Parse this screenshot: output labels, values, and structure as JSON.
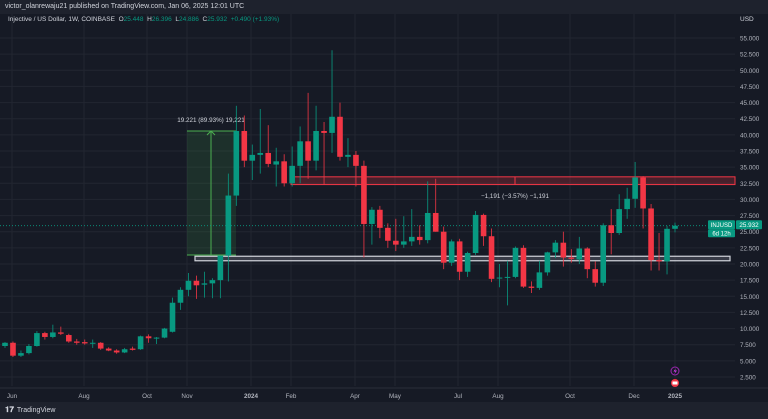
{
  "header": {
    "published": "victor_olanrewaju21 published on TradingView.com, Jan 06, 2025 12:01 UTC"
  },
  "legend": {
    "symbol": "Injective / US Dollar, 1W, COINBASE",
    "o_label": "O",
    "o": "25.448",
    "h_label": "H",
    "h": "26.396",
    "l_label": "L",
    "l": "24.886",
    "c_label": "C",
    "c": "25.932",
    "change": "+0.490 (+1.93%)"
  },
  "currency": "USD",
  "price_tag": {
    "ticker": "INJUSD",
    "price": "25.932",
    "countdown": "6d 12h"
  },
  "annotations": {
    "measure_up": "19.221 (89.93%) 19,221",
    "measure_down": "−1,191 (−3.57%) −1,191"
  },
  "colors": {
    "up": "#089981",
    "down": "#f23645",
    "resistance": "#f23645",
    "support": "#d1d4dc",
    "measure": "#4caf50"
  },
  "footer": {
    "brand": "TradingView"
  },
  "chart_data": {
    "type": "candlestick",
    "interval": "1W",
    "ylim": [
      0,
      57.5
    ],
    "y_ticks": [
      "55.000",
      "52.500",
      "50.000",
      "47.500",
      "45.000",
      "42.500",
      "40.000",
      "37.500",
      "35.000",
      "32.500",
      "30.000",
      "27.500",
      "25.000",
      "22.500",
      "20.000",
      "17.500",
      "15.000",
      "12.500",
      "10.000",
      "7.500",
      "5.000",
      "2.500"
    ],
    "x_ticks": [
      "Jun",
      "Aug",
      "Oct",
      "Nov",
      "2024",
      "Feb",
      "Apr",
      "May",
      "Jul",
      "Aug",
      "Oct",
      "Dec",
      "2025"
    ],
    "resistance_zone": [
      32.3,
      33.5
    ],
    "support_zone": [
      20.5,
      21.2
    ],
    "last_price": 25.932,
    "ohlc": [
      [
        7.3,
        7.9,
        7.0,
        7.8
      ],
      [
        7.8,
        8.0,
        5.6,
        5.8
      ],
      [
        5.8,
        6.6,
        5.6,
        6.2
      ],
      [
        6.2,
        7.6,
        6.0,
        7.3
      ],
      [
        7.3,
        9.6,
        7.2,
        9.3
      ],
      [
        9.3,
        9.5,
        8.3,
        8.7
      ],
      [
        8.7,
        10.6,
        8.5,
        9.4
      ],
      [
        9.4,
        10.3,
        9.0,
        9.2
      ],
      [
        9.0,
        9.2,
        7.8,
        8.0
      ],
      [
        8.0,
        8.4,
        7.5,
        7.8
      ],
      [
        7.9,
        8.3,
        7.5,
        7.7
      ],
      [
        7.7,
        8.3,
        7.0,
        7.8
      ],
      [
        7.8,
        7.9,
        6.7,
        6.9
      ],
      [
        6.9,
        7.1,
        6.5,
        6.6
      ],
      [
        6.6,
        6.8,
        6.1,
        6.3
      ],
      [
        6.3,
        7.0,
        6.2,
        6.8
      ],
      [
        6.9,
        7.2,
        6.6,
        6.7
      ],
      [
        6.8,
        8.9,
        6.7,
        8.8
      ],
      [
        8.8,
        9.1,
        7.8,
        8.5
      ],
      [
        8.5,
        8.7,
        7.6,
        8.6
      ],
      [
        8.6,
        10.1,
        8.5,
        10.0
      ],
      [
        9.5,
        14.8,
        9.4,
        14.0
      ],
      [
        14.0,
        16.4,
        12.9,
        16.0
      ],
      [
        16.0,
        18.6,
        15.0,
        17.4
      ],
      [
        17.4,
        18.2,
        14.6,
        16.7
      ],
      [
        16.8,
        18.8,
        14.8,
        17.0
      ],
      [
        17.0,
        17.8,
        14.7,
        17.5
      ],
      [
        17.5,
        21.3,
        14.7,
        21.3
      ],
      [
        21.3,
        34.0,
        17.3,
        30.6
      ],
      [
        30.6,
        44.5,
        29.0,
        40.6
      ],
      [
        40.6,
        43.0,
        35.0,
        36.0
      ],
      [
        36.0,
        38.5,
        33.0,
        36.9
      ],
      [
        36.9,
        44.0,
        34.0,
        37.2
      ],
      [
        37.2,
        41.5,
        35.0,
        35.5
      ],
      [
        35.4,
        38.0,
        32.0,
        35.9
      ],
      [
        35.9,
        37.0,
        32.0,
        32.5
      ],
      [
        32.5,
        38.2,
        32.0,
        35.2
      ],
      [
        35.2,
        41.3,
        32.5,
        39.0
      ],
      [
        39.0,
        46.5,
        33.2,
        36.0
      ],
      [
        36.0,
        44.5,
        34.5,
        40.6
      ],
      [
        40.6,
        42.0,
        32.3,
        40.3
      ],
      [
        40.3,
        53.1,
        37.2,
        42.8
      ],
      [
        42.8,
        45.0,
        36.0,
        36.6
      ],
      [
        36.6,
        39.5,
        35.0,
        36.9
      ],
      [
        36.9,
        37.5,
        32.0,
        35.2
      ],
      [
        35.2,
        36.0,
        21.0,
        26.2
      ],
      [
        26.2,
        28.8,
        23.0,
        28.4
      ],
      [
        28.4,
        29.0,
        24.0,
        25.6
      ],
      [
        25.6,
        26.3,
        22.5,
        23.6
      ],
      [
        23.6,
        27.0,
        22.0,
        23.0
      ],
      [
        23.0,
        27.4,
        22.5,
        23.5
      ],
      [
        23.5,
        28.5,
        22.8,
        24.2
      ],
      [
        24.2,
        26.0,
        23.0,
        23.7
      ],
      [
        23.7,
        32.8,
        23.2,
        27.9
      ],
      [
        27.9,
        33.2,
        25.0,
        25.0
      ],
      [
        25.0,
        25.8,
        19.2,
        20.2
      ],
      [
        20.2,
        23.8,
        19.7,
        23.5
      ],
      [
        23.5,
        23.9,
        17.5,
        18.8
      ],
      [
        18.8,
        21.9,
        18.0,
        21.7
      ],
      [
        21.7,
        28.2,
        21.4,
        27.6
      ],
      [
        27.6,
        27.8,
        22.8,
        24.3
      ],
      [
        24.3,
        25.5,
        17.2,
        17.7
      ],
      [
        17.8,
        20.0,
        16.4,
        17.9
      ],
      [
        17.9,
        20.5,
        13.6,
        18.0
      ],
      [
        18.0,
        22.7,
        17.8,
        22.5
      ],
      [
        22.5,
        22.9,
        16.3,
        16.5
      ],
      [
        16.5,
        17.3,
        15.5,
        16.3
      ],
      [
        16.3,
        20.5,
        16.0,
        18.7
      ],
      [
        18.7,
        21.9,
        18.2,
        21.8
      ],
      [
        21.8,
        23.7,
        20.9,
        23.3
      ],
      [
        23.3,
        25.0,
        19.6,
        21.0
      ],
      [
        21.0,
        22.3,
        20.2,
        20.8
      ],
      [
        20.7,
        24.2,
        20.0,
        22.4
      ],
      [
        22.4,
        22.6,
        17.8,
        19.2
      ],
      [
        19.2,
        20.4,
        16.5,
        17.1
      ],
      [
        17.1,
        26.3,
        16.6,
        26.0
      ],
      [
        26.0,
        28.5,
        21.5,
        24.8
      ],
      [
        24.8,
        30.8,
        24.5,
        28.5
      ],
      [
        28.5,
        31.8,
        27.0,
        30.1
      ],
      [
        30.1,
        35.8,
        28.7,
        33.4
      ],
      [
        33.4,
        33.6,
        25.5,
        28.6
      ],
      [
        28.6,
        29.3,
        19.0,
        20.6
      ],
      [
        20.6,
        24.8,
        19.0,
        20.4
      ],
      [
        20.4,
        25.9,
        18.4,
        25.45
      ],
      [
        25.45,
        26.4,
        24.9,
        25.93
      ]
    ]
  }
}
